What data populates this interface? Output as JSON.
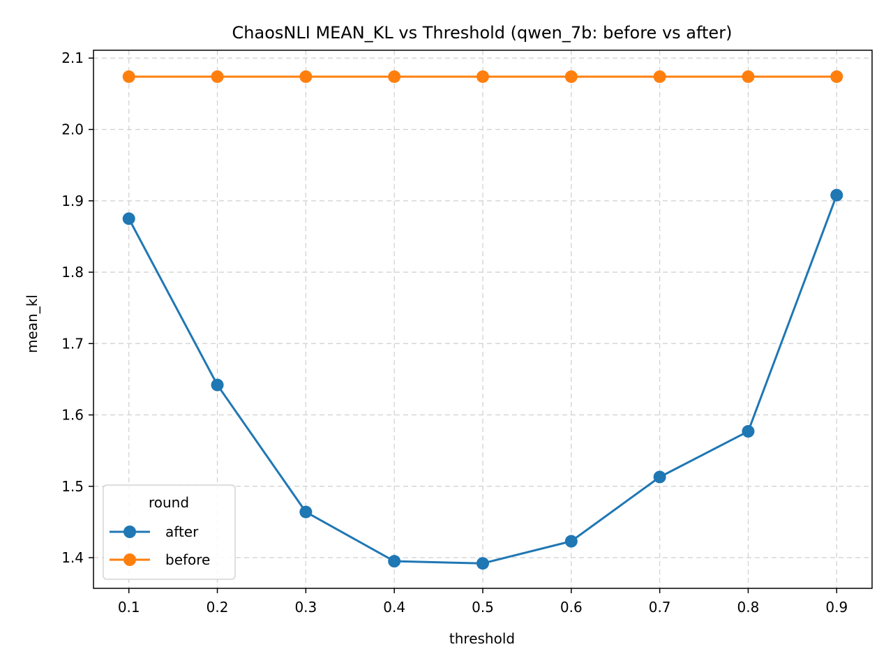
{
  "chart_data": {
    "type": "line",
    "title": "ChaosNLI MEAN_KL vs Threshold (qwen_7b: before vs after)",
    "xlabel": "threshold",
    "ylabel": "mean_kl",
    "x": [
      0.1,
      0.2,
      0.3,
      0.4,
      0.5,
      0.6,
      0.7,
      0.8,
      0.9
    ],
    "x_tick_labels": [
      "0.1",
      "0.2",
      "0.3",
      "0.4",
      "0.5",
      "0.6",
      "0.7",
      "0.8",
      "0.9"
    ],
    "y_ticks": [
      1.4,
      1.5,
      1.6,
      1.7,
      1.8,
      1.9,
      2.0,
      2.1
    ],
    "y_tick_labels": [
      "1.4",
      "1.5",
      "1.6",
      "1.7",
      "1.8",
      "1.9",
      "2.0",
      "2.1"
    ],
    "xlim": [
      0.06,
      0.94
    ],
    "ylim": [
      1.357,
      2.111
    ],
    "grid": true,
    "marker": "circle",
    "legend": {
      "title": "round",
      "placement": "lower-left"
    },
    "series": [
      {
        "name": "after",
        "color": "#1f77b4",
        "values": [
          1.875,
          1.642,
          1.464,
          1.395,
          1.392,
          1.423,
          1.513,
          1.577,
          1.908
        ]
      },
      {
        "name": "before",
        "color": "#ff7f0e",
        "values": [
          2.074,
          2.074,
          2.074,
          2.074,
          2.074,
          2.074,
          2.074,
          2.074,
          2.074
        ]
      }
    ]
  }
}
